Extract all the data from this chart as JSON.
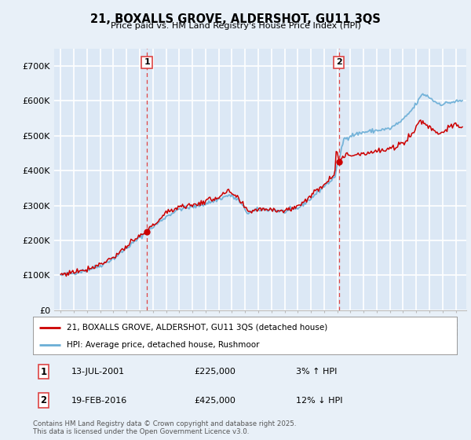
{
  "title": "21, BOXALLS GROVE, ALDERSHOT, GU11 3QS",
  "subtitle": "Price paid vs. HM Land Registry's House Price Index (HPI)",
  "legend_line1": "21, BOXALLS GROVE, ALDERSHOT, GU11 3QS (detached house)",
  "legend_line2": "HPI: Average price, detached house, Rushmoor",
  "annotation1_date": "13-JUL-2001",
  "annotation1_price": "£225,000",
  "annotation1_hpi": "3% ↑ HPI",
  "annotation2_date": "19-FEB-2016",
  "annotation2_price": "£425,000",
  "annotation2_hpi": "12% ↓ HPI",
  "footer": "Contains HM Land Registry data © Crown copyright and database right 2025.\nThis data is licensed under the Open Government Licence v3.0.",
  "sale1_x": 2001.54,
  "sale1_y": 225000,
  "sale2_x": 2016.12,
  "sale2_y": 425000,
  "ylim_min": 0,
  "ylim_max": 750000,
  "xlim_min": 1994.5,
  "xlim_max": 2025.8,
  "hpi_color": "#6aaed6",
  "price_color": "#cc0000",
  "sale_marker_color": "#cc0000",
  "vline_color": "#dd4444",
  "background_color": "#e8f0f8",
  "plot_bg_color": "#dce8f5",
  "grid_color": "#ffffff",
  "yticks": [
    0,
    100000,
    200000,
    300000,
    400000,
    500000,
    600000,
    700000
  ],
  "ytick_labels": [
    "£0",
    "£100K",
    "£200K",
    "£300K",
    "£400K",
    "£500K",
    "£600K",
    "£700K"
  ]
}
